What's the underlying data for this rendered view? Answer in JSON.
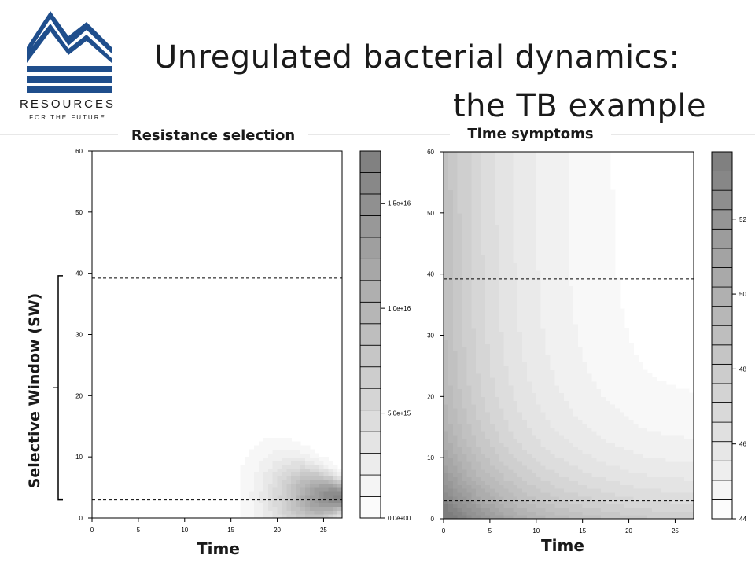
{
  "header": {
    "title_line1": "Unregulated bacterial dynamics:",
    "title_line2": "the TB example"
  },
  "logo": {
    "name": "RESOURCES",
    "tagline": "FOR THE FUTURE",
    "color": "#1f4e8c"
  },
  "annotations": {
    "selective_window": "Selective Window (SW)"
  },
  "chart_data": [
    {
      "type": "heatmap",
      "title": "Resistance selection",
      "xlabel": "Time",
      "ylabel": "",
      "xlim": [
        0,
        27
      ],
      "ylim": [
        0,
        60
      ],
      "x_ticks": [
        "0",
        "5",
        "10",
        "15",
        "20",
        "25"
      ],
      "y_ticks": [
        "0",
        "10",
        "20",
        "30",
        "40",
        "50",
        "60"
      ],
      "dashed_lines_y": [
        3,
        39.2
      ],
      "peak": {
        "x": 27,
        "y": 3.5
      },
      "colorbar": {
        "range": [
          0,
          1.75e+16
        ],
        "levels": 17,
        "tick_labels": [
          "0.0e+00",
          "5.0e+15",
          "1.0e+16",
          "1.5e+16"
        ],
        "tick_values": [
          0,
          5000000000000000.0,
          1e+16,
          1.5e+16
        ]
      }
    },
    {
      "type": "heatmap",
      "title": "Time symptoms",
      "xlabel": "Time",
      "ylabel": "",
      "xlim": [
        0,
        27
      ],
      "ylim": [
        0,
        60
      ],
      "x_ticks": [
        "0",
        "5",
        "10",
        "15",
        "20",
        "25"
      ],
      "y_ticks": [
        "0",
        "10",
        "20",
        "30",
        "40",
        "50",
        "60"
      ],
      "dashed_lines_y": [
        3,
        39.2
      ],
      "colorbar": {
        "range": [
          44,
          53.8
        ],
        "levels": 19,
        "tick_labels": [
          "44",
          "46",
          "48",
          "50",
          "52"
        ],
        "tick_values": [
          44,
          46,
          48,
          50,
          52
        ]
      }
    }
  ]
}
